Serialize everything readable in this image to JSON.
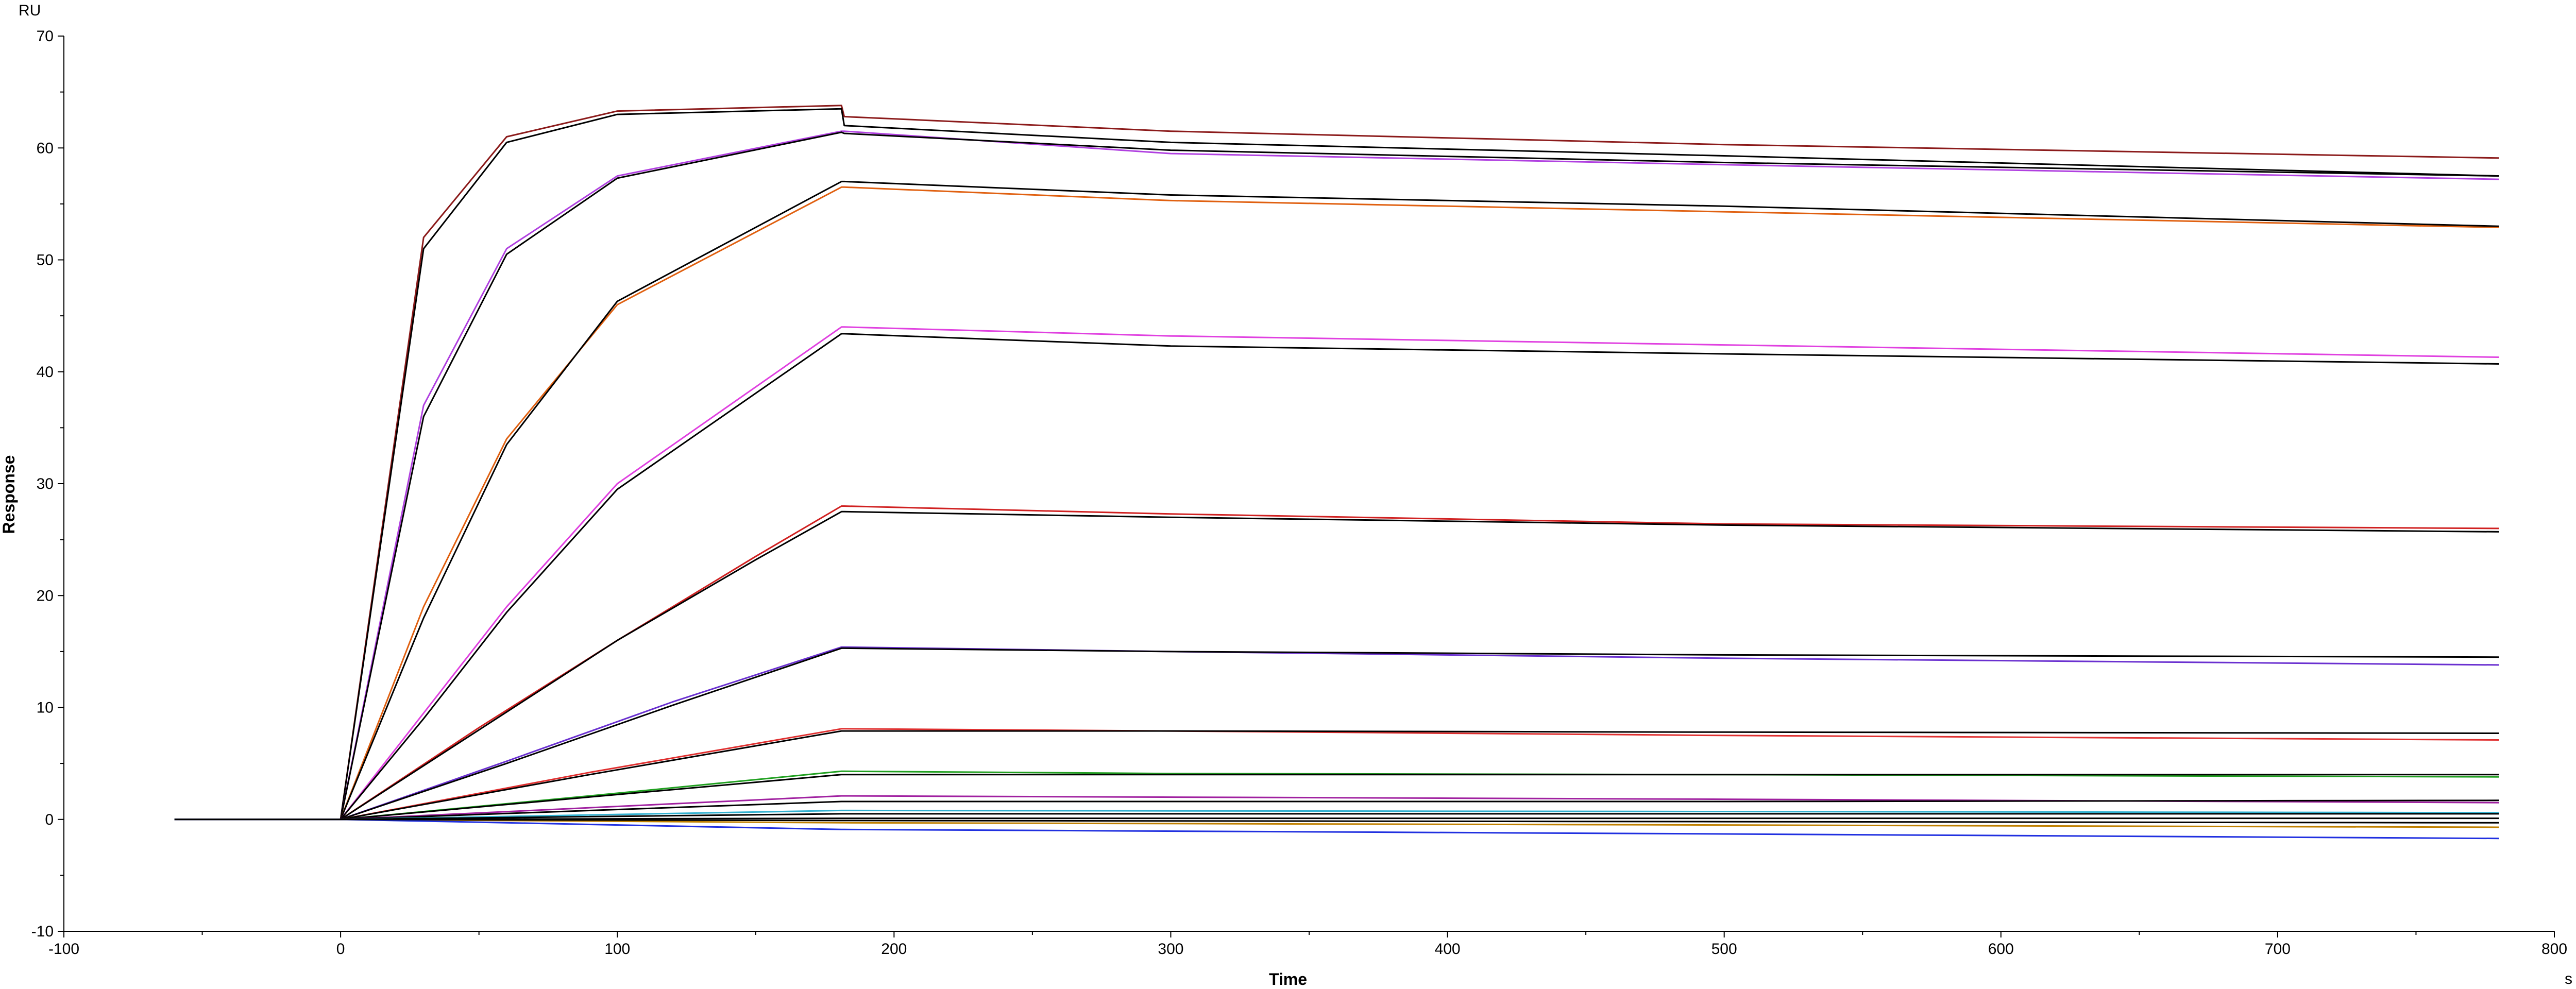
{
  "chart_data": {
    "type": "line",
    "xlabel": "Time",
    "ylabel": "Response",
    "x_unit": "s",
    "y_unit": "RU",
    "xlim": [
      -100,
      800
    ],
    "ylim": [
      -10,
      70
    ],
    "x_ticks": [
      "-100",
      "0",
      "100",
      "200",
      "300",
      "400",
      "500",
      "600",
      "700",
      "800"
    ],
    "y_ticks": [
      "-10",
      "0",
      "10",
      "20",
      "30",
      "40",
      "50",
      "60",
      "70"
    ],
    "grid": false,
    "legend": "none",
    "series": [
      {
        "color": "#8b1a1a",
        "values": [
          [
            -60,
            0
          ],
          [
            0,
            0
          ],
          [
            30,
            52
          ],
          [
            60,
            61
          ],
          [
            100,
            63.3
          ],
          [
            181,
            63.8
          ],
          [
            182,
            62.8
          ],
          [
            300,
            61.5
          ],
          [
            500,
            60.3
          ],
          [
            780,
            59.1
          ]
        ]
      },
      {
        "color": "#000000",
        "values": [
          [
            -60,
            0
          ],
          [
            0,
            0
          ],
          [
            30,
            51
          ],
          [
            60,
            60.5
          ],
          [
            100,
            63
          ],
          [
            181,
            63.5
          ],
          [
            182,
            62
          ],
          [
            300,
            60.5
          ],
          [
            500,
            59.3
          ],
          [
            780,
            57.5
          ]
        ]
      },
      {
        "color": "#b040e0",
        "values": [
          [
            -60,
            0
          ],
          [
            0,
            0
          ],
          [
            30,
            37
          ],
          [
            60,
            51
          ],
          [
            100,
            57.5
          ],
          [
            181,
            61.5
          ],
          [
            182,
            61.5
          ],
          [
            300,
            59.5
          ],
          [
            500,
            58.5
          ],
          [
            780,
            57.2
          ]
        ]
      },
      {
        "color": "#000000",
        "values": [
          [
            -60,
            0
          ],
          [
            0,
            0
          ],
          [
            30,
            36
          ],
          [
            60,
            50.5
          ],
          [
            100,
            57.3
          ],
          [
            181,
            61.4
          ],
          [
            182,
            61.3
          ],
          [
            300,
            59.8
          ],
          [
            500,
            58.7
          ],
          [
            780,
            57.5
          ]
        ]
      },
      {
        "color": "#e06010",
        "values": [
          [
            -60,
            0
          ],
          [
            0,
            0
          ],
          [
            30,
            19
          ],
          [
            60,
            34
          ],
          [
            100,
            46
          ],
          [
            181,
            56.5
          ],
          [
            182,
            56.5
          ],
          [
            300,
            55.3
          ],
          [
            500,
            54.3
          ],
          [
            780,
            52.9
          ]
        ]
      },
      {
        "color": "#000000",
        "values": [
          [
            -60,
            0
          ],
          [
            0,
            0
          ],
          [
            30,
            18
          ],
          [
            60,
            33.5
          ],
          [
            100,
            46.3
          ],
          [
            181,
            57
          ],
          [
            182,
            57
          ],
          [
            300,
            55.8
          ],
          [
            500,
            54.8
          ],
          [
            780,
            53
          ]
        ]
      },
      {
        "color": "#e040e0",
        "values": [
          [
            -60,
            0
          ],
          [
            0,
            0
          ],
          [
            30,
            9.5
          ],
          [
            60,
            19
          ],
          [
            100,
            30
          ],
          [
            181,
            44
          ],
          [
            182,
            44
          ],
          [
            300,
            43.2
          ],
          [
            500,
            42.4
          ],
          [
            780,
            41.3
          ]
        ]
      },
      {
        "color": "#000000",
        "values": [
          [
            -60,
            0
          ],
          [
            0,
            0
          ],
          [
            30,
            9
          ],
          [
            60,
            18.5
          ],
          [
            100,
            29.5
          ],
          [
            181,
            43.4
          ],
          [
            182,
            43.4
          ],
          [
            300,
            42.3
          ],
          [
            500,
            41.6
          ],
          [
            780,
            40.7
          ]
        ]
      },
      {
        "color": "#d02020",
        "values": [
          [
            -60,
            0
          ],
          [
            0,
            0
          ],
          [
            50,
            8.2
          ],
          [
            100,
            16
          ],
          [
            150,
            23.5
          ],
          [
            181,
            28
          ],
          [
            182,
            28
          ],
          [
            300,
            27.3
          ],
          [
            500,
            26.4
          ],
          [
            780,
            26
          ]
        ]
      },
      {
        "color": "#000000",
        "values": [
          [
            -60,
            0
          ],
          [
            0,
            0
          ],
          [
            50,
            8
          ],
          [
            100,
            16
          ],
          [
            150,
            23.2
          ],
          [
            181,
            27.5
          ],
          [
            182,
            27.5
          ],
          [
            300,
            27
          ],
          [
            500,
            26.3
          ],
          [
            780,
            25.7
          ]
        ]
      },
      {
        "color": "#6a30d0",
        "values": [
          [
            -60,
            0
          ],
          [
            0,
            0
          ],
          [
            60,
            5.2
          ],
          [
            120,
            10.5
          ],
          [
            181,
            15.4
          ],
          [
            182,
            15.4
          ],
          [
            300,
            15
          ],
          [
            500,
            14.4
          ],
          [
            780,
            13.8
          ]
        ]
      },
      {
        "color": "#000000",
        "values": [
          [
            -60,
            0
          ],
          [
            0,
            0
          ],
          [
            60,
            5
          ],
          [
            120,
            10.2
          ],
          [
            181,
            15.3
          ],
          [
            182,
            15.3
          ],
          [
            300,
            15
          ],
          [
            500,
            14.7
          ],
          [
            780,
            14.5
          ]
        ]
      },
      {
        "color": "#e03030",
        "values": [
          [
            -60,
            0
          ],
          [
            0,
            0
          ],
          [
            90,
            4.2
          ],
          [
            181,
            8.1
          ],
          [
            182,
            8.1
          ],
          [
            300,
            7.9
          ],
          [
            500,
            7.5
          ],
          [
            780,
            7.1
          ]
        ]
      },
      {
        "color": "#000000",
        "values": [
          [
            -60,
            0
          ],
          [
            0,
            0
          ],
          [
            90,
            4
          ],
          [
            181,
            7.9
          ],
          [
            182,
            7.9
          ],
          [
            300,
            7.9
          ],
          [
            500,
            7.8
          ],
          [
            780,
            7.7
          ]
        ]
      },
      {
        "color": "#20a020",
        "values": [
          [
            -60,
            0
          ],
          [
            0,
            0
          ],
          [
            90,
            2.1
          ],
          [
            181,
            4.3
          ],
          [
            182,
            4.3
          ],
          [
            300,
            4.1
          ],
          [
            500,
            4
          ],
          [
            780,
            3.8
          ]
        ]
      },
      {
        "color": "#000000",
        "values": [
          [
            -60,
            0
          ],
          [
            0,
            0
          ],
          [
            90,
            2
          ],
          [
            181,
            4
          ],
          [
            182,
            4
          ],
          [
            300,
            4
          ],
          [
            500,
            4
          ],
          [
            780,
            4
          ]
        ]
      },
      {
        "color": "#a020a0",
        "values": [
          [
            -60,
            0
          ],
          [
            0,
            0
          ],
          [
            181,
            2.1
          ],
          [
            182,
            2.1
          ],
          [
            500,
            1.8
          ],
          [
            780,
            1.5
          ]
        ]
      },
      {
        "color": "#000000",
        "values": [
          [
            -60,
            0
          ],
          [
            0,
            0
          ],
          [
            181,
            1.6
          ],
          [
            182,
            1.6
          ],
          [
            500,
            1.6
          ],
          [
            780,
            1.7
          ]
        ]
      },
      {
        "color": "#30b0d0",
        "values": [
          [
            -60,
            0
          ],
          [
            0,
            0
          ],
          [
            181,
            0.8
          ],
          [
            182,
            0.8
          ],
          [
            500,
            0.7
          ],
          [
            780,
            0.6
          ]
        ]
      },
      {
        "color": "#000000",
        "values": [
          [
            -60,
            0
          ],
          [
            0,
            0
          ],
          [
            181,
            0.5
          ],
          [
            182,
            0.5
          ],
          [
            500,
            0.5
          ],
          [
            780,
            0.5
          ]
        ]
      },
      {
        "color": "#c08000",
        "values": [
          [
            -60,
            0
          ],
          [
            0,
            0
          ],
          [
            181,
            -0.3
          ],
          [
            182,
            -0.3
          ],
          [
            500,
            -0.5
          ],
          [
            780,
            -0.7
          ]
        ]
      },
      {
        "color": "#000000",
        "values": [
          [
            -60,
            0
          ],
          [
            0,
            0
          ],
          [
            181,
            0.1
          ],
          [
            182,
            0.1
          ],
          [
            500,
            0.1
          ],
          [
            780,
            0.1
          ]
        ]
      },
      {
        "color": "#2030e0",
        "values": [
          [
            -60,
            0
          ],
          [
            0,
            0
          ],
          [
            181,
            -0.9
          ],
          [
            182,
            -0.9
          ],
          [
            500,
            -1.3
          ],
          [
            780,
            -1.7
          ]
        ]
      },
      {
        "color": "#000000",
        "values": [
          [
            -60,
            0
          ],
          [
            0,
            0
          ],
          [
            181,
            -0.1
          ],
          [
            182,
            -0.1
          ],
          [
            500,
            -0.2
          ],
          [
            780,
            -0.3
          ]
        ]
      }
    ]
  }
}
